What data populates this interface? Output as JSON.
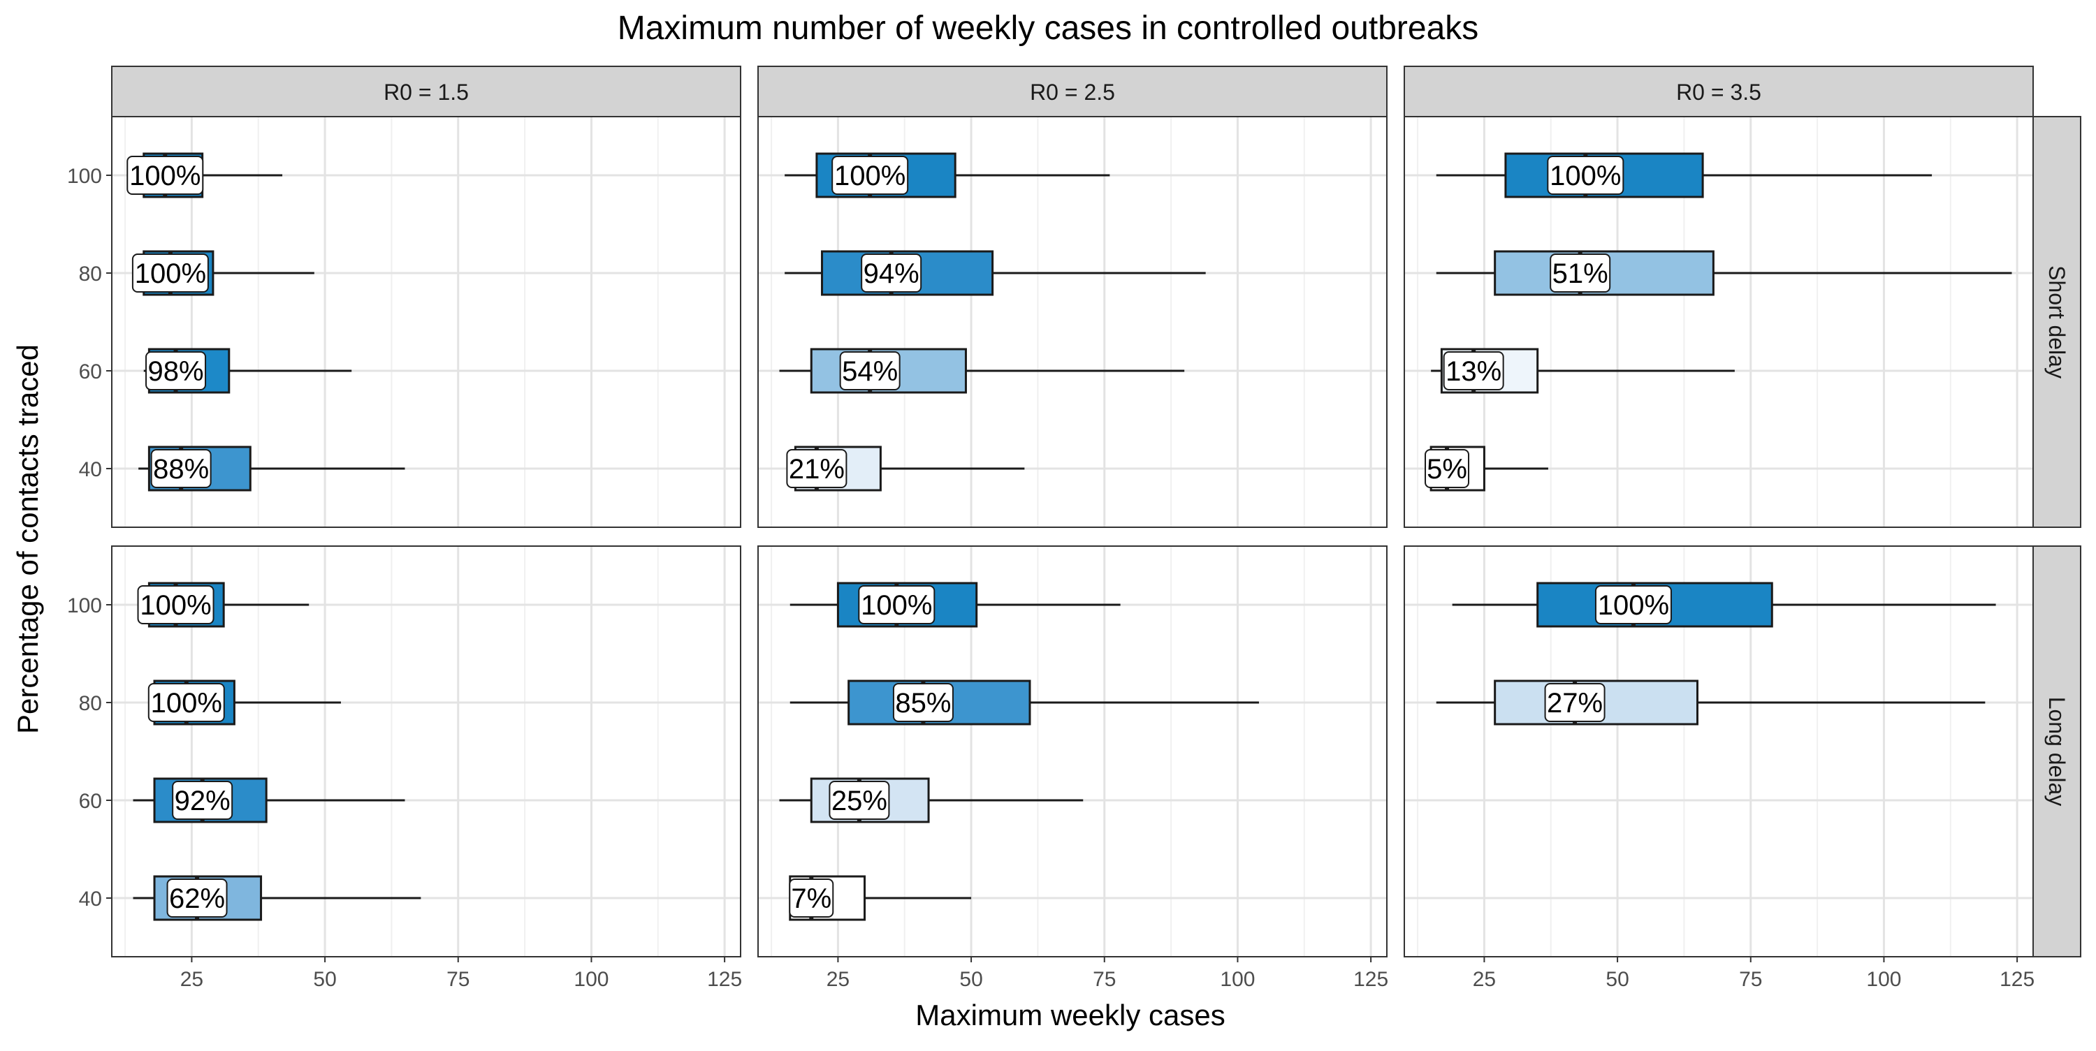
{
  "chart_data": {
    "type": "boxplot",
    "title": "Maximum number of weekly cases in controlled outbreaks",
    "xlabel": "Maximum weekly cases",
    "ylabel": "Percentage of contacts traced",
    "xlim": [
      10,
      128
    ],
    "x_ticks": [
      25,
      50,
      75,
      100,
      125
    ],
    "y_ticks": [
      40,
      60,
      80,
      100
    ],
    "grid": true,
    "legend": "none",
    "col_facets": [
      "R0 = 1.5",
      "R0 = 2.5",
      "R0 = 3.5"
    ],
    "row_facets": [
      "Short delay",
      "Long delay"
    ],
    "panels": [
      {
        "col": 0,
        "row": 0,
        "boxes": [
          {
            "y": 100,
            "wlo": 17,
            "q1": 16,
            "med": 20,
            "q3": 27,
            "whi": 42,
            "label": "100%",
            "fill": "#1a85c4"
          },
          {
            "y": 80,
            "wlo": 17,
            "q1": 16,
            "med": 21,
            "q3": 29,
            "whi": 48,
            "label": "100%",
            "fill": "#1a85c4"
          },
          {
            "y": 60,
            "wlo": 16,
            "q1": 17,
            "med": 22,
            "q3": 32,
            "whi": 55,
            "label": "98%",
            "fill": "#1d89c8"
          },
          {
            "y": 40,
            "wlo": 15,
            "q1": 17,
            "med": 23,
            "q3": 36,
            "whi": 65,
            "label": "88%",
            "fill": "#3d95cf"
          }
        ]
      },
      {
        "col": 1,
        "row": 0,
        "boxes": [
          {
            "y": 100,
            "wlo": 15,
            "q1": 21,
            "med": 31,
            "q3": 47,
            "whi": 76,
            "label": "100%",
            "fill": "#1a85c4"
          },
          {
            "y": 80,
            "wlo": 15,
            "q1": 22,
            "med": 35,
            "q3": 54,
            "whi": 94,
            "label": "94%",
            "fill": "#2b8cc9"
          },
          {
            "y": 60,
            "wlo": 14,
            "q1": 20,
            "med": 31,
            "q3": 49,
            "whi": 90,
            "label": "54%",
            "fill": "#93c2e3"
          },
          {
            "y": 40,
            "wlo": 17,
            "q1": 17,
            "med": 21,
            "q3": 33,
            "whi": 60,
            "label": "21%",
            "fill": "#e3eef8"
          }
        ]
      },
      {
        "col": 2,
        "row": 0,
        "boxes": [
          {
            "y": 100,
            "wlo": 16,
            "q1": 29,
            "med": 44,
            "q3": 66,
            "whi": 109,
            "label": "100%",
            "fill": "#1a85c4"
          },
          {
            "y": 80,
            "wlo": 16,
            "q1": 27,
            "med": 43,
            "q3": 68,
            "whi": 124,
            "label": "51%",
            "fill": "#93c2e3"
          },
          {
            "y": 60,
            "wlo": 15,
            "q1": 17,
            "med": 23,
            "q3": 35,
            "whi": 72,
            "label": "13%",
            "fill": "#eef5fb"
          },
          {
            "y": 40,
            "wlo": 15,
            "q1": 15,
            "med": 18,
            "q3": 25,
            "whi": 37,
            "label": "5%",
            "fill": "#ffffff"
          }
        ]
      },
      {
        "col": 0,
        "row": 1,
        "boxes": [
          {
            "y": 100,
            "wlo": 17,
            "q1": 17,
            "med": 22,
            "q3": 31,
            "whi": 47,
            "label": "100%",
            "fill": "#1a85c4"
          },
          {
            "y": 80,
            "wlo": 18,
            "q1": 18,
            "med": 24,
            "q3": 33,
            "whi": 53,
            "label": "100%",
            "fill": "#1a85c4"
          },
          {
            "y": 60,
            "wlo": 14,
            "q1": 18,
            "med": 27,
            "q3": 39,
            "whi": 65,
            "label": "92%",
            "fill": "#2b8cc9"
          },
          {
            "y": 40,
            "wlo": 14,
            "q1": 18,
            "med": 26,
            "q3": 38,
            "whi": 68,
            "label": "62%",
            "fill": "#7fb6de"
          }
        ]
      },
      {
        "col": 1,
        "row": 1,
        "boxes": [
          {
            "y": 100,
            "wlo": 16,
            "q1": 25,
            "med": 36,
            "q3": 51,
            "whi": 78,
            "label": "100%",
            "fill": "#1a85c4"
          },
          {
            "y": 80,
            "wlo": 16,
            "q1": 27,
            "med": 41,
            "q3": 61,
            "whi": 104,
            "label": "85%",
            "fill": "#3d95cf"
          },
          {
            "y": 60,
            "wlo": 14,
            "q1": 20,
            "med": 29,
            "q3": 42,
            "whi": 71,
            "label": "25%",
            "fill": "#d3e4f3"
          },
          {
            "y": 40,
            "wlo": 16,
            "q1": 16,
            "med": 20,
            "q3": 30,
            "whi": 50,
            "label": "7%",
            "fill": "#ffffff"
          }
        ]
      },
      {
        "col": 2,
        "row": 1,
        "boxes": [
          {
            "y": 100,
            "wlo": 19,
            "q1": 35,
            "med": 53,
            "q3": 79,
            "whi": 121,
            "label": "100%",
            "fill": "#1a85c4"
          },
          {
            "y": 80,
            "wlo": 16,
            "q1": 27,
            "med": 42,
            "q3": 65,
            "whi": 119,
            "label": "27%",
            "fill": "#cbe0f1"
          }
        ]
      }
    ]
  }
}
